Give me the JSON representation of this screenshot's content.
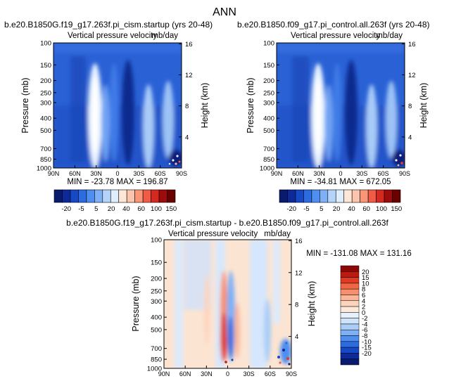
{
  "figure": {
    "title": "ANN"
  },
  "colors": {
    "positive_ramp": [
      "#fff1e4",
      "#fedac4",
      "#fcbba1",
      "#fc9272",
      "#fb6a4a",
      "#ef3b2c",
      "#cb181d",
      "#a50f15",
      "#67000d"
    ],
    "negative_ramp": [
      "#dbe9f8",
      "#c6dbef",
      "#9ecae1",
      "#6baed6",
      "#4292c6",
      "#2171b5",
      "#08519c",
      "#08306b"
    ],
    "top_cb": [
      "#0a1a6e",
      "#0d2a9a",
      "#1649c8",
      "#2c6be0",
      "#4d8ef0",
      "#7fb0f6",
      "#b4d3fa",
      "#dfeefd",
      "#fde6d8",
      "#fcc5ab",
      "#f99677",
      "#ef5b45",
      "#d6281f",
      "#9e0b0b",
      "#6a0000"
    ],
    "diff_cb": [
      "#0a1a6e",
      "#0d2a9a",
      "#1649c8",
      "#2c6be0",
      "#4d8ef0",
      "#7fb0f6",
      "#a9cdf7",
      "#cfe3fb",
      "#e6f1fd",
      "#fde8d9",
      "#fcd4be",
      "#fbb699",
      "#f88f6c",
      "#f26544",
      "#e03a22",
      "#bd1a0f",
      "#8c0804"
    ]
  },
  "chart_data": [
    {
      "type": "heatmap",
      "title": "b.e20.B1850G.f19_g17.263f.pi_cism.startup (yrs 20-48)",
      "subtitle_left": "Vertical pressure velocity",
      "subtitle_right": "mb/day",
      "xlabel": "",
      "ylabel": "Pressure (mb)",
      "ylabel_right": "Height (km)",
      "x_ticks": [
        "90N",
        "60N",
        "30N",
        "0",
        "30S",
        "60S",
        "90S"
      ],
      "x_range": [
        90,
        -90
      ],
      "y_ticks": [
        "100",
        "150",
        "200",
        "250",
        "300",
        "400",
        "500",
        "700",
        "850",
        "1000"
      ],
      "y_range": [
        100,
        1000
      ],
      "y_scale": "log",
      "height_ticks": [
        "16",
        "12",
        "8",
        "4"
      ],
      "min_max_label": "MIN = -23.78   MAX = 196.87",
      "min": -23.78,
      "max": 196.87,
      "colorbar_labels": [
        "-20",
        "-5",
        "5",
        "20",
        "40",
        "60",
        "100",
        "150"
      ],
      "colorbar_levels": [
        -30,
        -25,
        -20,
        -15,
        -10,
        -5,
        0,
        5,
        10,
        20,
        30,
        40,
        60,
        100,
        150
      ]
    },
    {
      "type": "heatmap",
      "title": "b.e20.B1850.f09_g17.pi_control.all.263f (yrs 20-48)",
      "subtitle_left": "Vertical pressure velocity",
      "subtitle_right": "mb/day",
      "xlabel": "",
      "ylabel": "Pressure (mb)",
      "ylabel_right": "Height (km)",
      "x_ticks": [
        "90N",
        "60N",
        "30N",
        "0",
        "30S",
        "60S",
        "90S"
      ],
      "x_range": [
        90,
        -90
      ],
      "y_ticks": [
        "100",
        "150",
        "200",
        "250",
        "300",
        "400",
        "500",
        "700",
        "850",
        "1000"
      ],
      "y_range": [
        100,
        1000
      ],
      "y_scale": "log",
      "height_ticks": [
        "16",
        "12",
        "8",
        "4"
      ],
      "min_max_label": "MIN = -34.81   MAX = 672.05",
      "min": -34.81,
      "max": 672.05,
      "colorbar_labels": [
        "-20",
        "-5",
        "5",
        "20",
        "40",
        "60",
        "100",
        "150"
      ],
      "colorbar_levels": [
        -30,
        -25,
        -20,
        -15,
        -10,
        -5,
        0,
        5,
        10,
        20,
        30,
        40,
        60,
        100,
        150
      ]
    },
    {
      "type": "heatmap",
      "title": "b.e20.B1850G.f19_g17.263f.pi_cism.startup - b.e20.B1850.f09_g17.pi_control.all.263f",
      "subtitle_left": "Vertical pressure velocity",
      "subtitle_right": "mb/day",
      "xlabel": "",
      "ylabel": "Pressure (mb)",
      "ylabel_right": "Height (km)",
      "x_ticks": [
        "90N",
        "60N",
        "30N",
        "0",
        "30S",
        "60S",
        "90S"
      ],
      "x_range": [
        90,
        -90
      ],
      "y_ticks": [
        "100",
        "150",
        "200",
        "250",
        "300",
        "400",
        "500",
        "700",
        "850",
        "1000"
      ],
      "y_range": [
        100,
        1000
      ],
      "y_scale": "log",
      "height_ticks": [
        "16",
        "12",
        "8",
        "4"
      ],
      "min_max_label": "MIN = -131.08   MAX = 131.16",
      "min": -131.08,
      "max": 131.16,
      "colorbar_labels": [
        "20",
        "15",
        "10",
        "8",
        "6",
        "4",
        "2",
        "0",
        "-2",
        "-4",
        "-6",
        "-8",
        "-10",
        "-15",
        "-20"
      ],
      "colorbar_levels": [
        20,
        15,
        10,
        8,
        6,
        4,
        2,
        0,
        -2,
        -4,
        -6,
        -8,
        -10,
        -15,
        -20
      ]
    }
  ]
}
